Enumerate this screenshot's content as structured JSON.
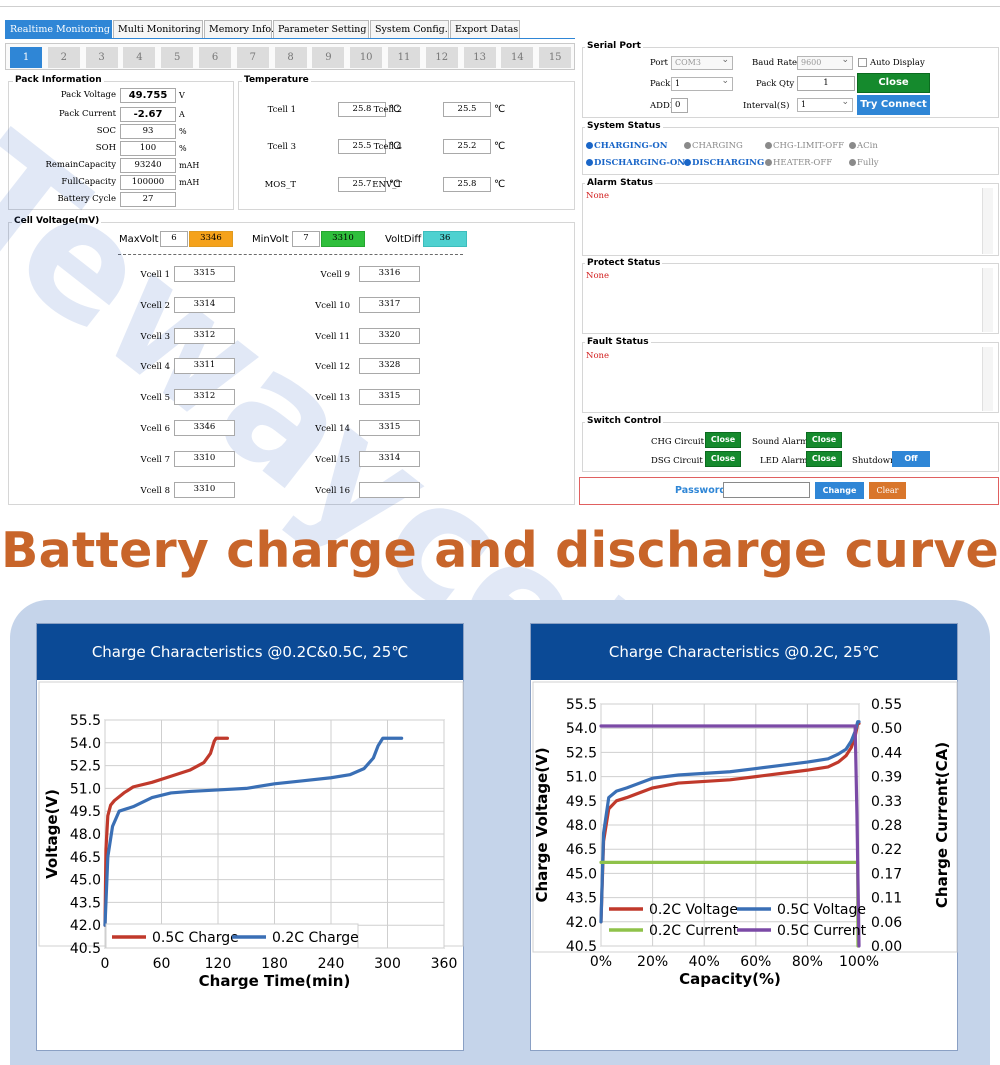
{
  "tabs": [
    "Realtime Monitoring",
    "Multi Monitoring",
    "Memory Info.",
    "Parameter Setting",
    "System Config.",
    "Export Datas"
  ],
  "pack_tabs": [
    "1",
    "2",
    "3",
    "4",
    "5",
    "6",
    "7",
    "8",
    "9",
    "10",
    "11",
    "12",
    "13",
    "14",
    "15"
  ],
  "pack_info": {
    "title": "Pack Information",
    "rows": [
      {
        "label": "Pack Voltage",
        "value": "49.755",
        "unit": "V"
      },
      {
        "label": "Pack Current",
        "value": "-2.67",
        "unit": "A"
      },
      {
        "label": "SOC",
        "value": "93",
        "unit": "%"
      },
      {
        "label": "SOH",
        "value": "100",
        "unit": "%"
      },
      {
        "label": "RemainCapacity",
        "value": "93240",
        "unit": "mAH"
      },
      {
        "label": "FullCapacity",
        "value": "100000",
        "unit": "mAH"
      },
      {
        "label": "Battery Cycle",
        "value": "27",
        "unit": ""
      }
    ]
  },
  "temperature": {
    "title": "Temperature",
    "unit": "℃",
    "items": [
      {
        "label": "Tcell 1",
        "value": "25.8"
      },
      {
        "label": "Tcell 2",
        "value": "25.5"
      },
      {
        "label": "Tcell 3",
        "value": "25.5"
      },
      {
        "label": "Tcell 4",
        "value": "25.2"
      },
      {
        "label": "MOS_T",
        "value": "25.7"
      },
      {
        "label": "ENV_T",
        "value": "25.8"
      }
    ]
  },
  "cell_voltage": {
    "title": "Cell Voltage(mV)",
    "max_label": "MaxVolt",
    "max_cell": "6",
    "max_value": "3346",
    "min_label": "MinVolt",
    "min_cell": "7",
    "min_value": "3310",
    "diff_label": "VoltDiff",
    "diff_value": "36",
    "cells": [
      {
        "label": "Vcell 1",
        "value": "3315"
      },
      {
        "label": "Vcell 2",
        "value": "3314"
      },
      {
        "label": "Vcell 3",
        "value": "3312"
      },
      {
        "label": "Vcell 4",
        "value": "3311"
      },
      {
        "label": "Vcell 5",
        "value": "3312"
      },
      {
        "label": "Vcell 6",
        "value": "3346"
      },
      {
        "label": "Vcell 7",
        "value": "3310"
      },
      {
        "label": "Vcell 8",
        "value": "3310"
      },
      {
        "label": "Vcell 9",
        "value": "3316"
      },
      {
        "label": "Vcell 10",
        "value": "3317"
      },
      {
        "label": "Vcell 11",
        "value": "3320"
      },
      {
        "label": "Vcell 12",
        "value": "3328"
      },
      {
        "label": "Vcell 13",
        "value": "3315"
      },
      {
        "label": "Vcell 14",
        "value": "3315"
      },
      {
        "label": "Vcell 15",
        "value": "3314"
      },
      {
        "label": "Vcell 16",
        "value": ""
      }
    ],
    "colors": {
      "max": "#f5a21b",
      "min": "#2fbf3c",
      "diff": "#4fd1d0"
    }
  },
  "serial_port": {
    "title": "Serial Port",
    "port_label": "Port",
    "port_value": "COM3",
    "baud_label": "Baud Rate",
    "baud_value": "9600",
    "auto_display_label": "Auto Display",
    "pack_label": "Pack",
    "pack_value": "1",
    "pack_qty_label": "Pack Qty",
    "pack_qty_value": "1",
    "close_label": "Close",
    "addr_label": "ADDR",
    "addr_value": "0",
    "interval_label": "Interval(S)",
    "interval_value": "1",
    "try_connect_label": "Try Connect"
  },
  "system_status": {
    "title": "System Status",
    "items": [
      {
        "label": "CHARGING-ON",
        "on": true
      },
      {
        "label": "CHARGING",
        "on": false
      },
      {
        "label": "CHG-LIMIT-OFF",
        "on": false
      },
      {
        "label": "ACin",
        "on": false
      },
      {
        "label": "DISCHARGING-ON",
        "on": true
      },
      {
        "label": "DISCHARGING",
        "on": true
      },
      {
        "label": "HEATER-OFF",
        "on": false
      },
      {
        "label": "Fully",
        "on": false
      }
    ]
  },
  "alarm_status": {
    "title": "Alarm Status",
    "value": "None"
  },
  "protect_status": {
    "title": "Protect Status",
    "value": "None"
  },
  "fault_status": {
    "title": "Fault Status",
    "value": "None"
  },
  "switch_control": {
    "title": "Switch Control",
    "chg_label": "CHG Circuit",
    "chg_btn": "Close",
    "sound_label": "Sound Alarm",
    "sound_btn": "Close",
    "dsg_label": "DSG Circuit",
    "dsg_btn": "Close",
    "led_label": "LED Alarm",
    "led_btn": "Close",
    "shutdown_label": "Shutdown",
    "shutdown_btn": "Off"
  },
  "password": {
    "label": "Password",
    "change_label": "Change",
    "clear_label": "Clear"
  },
  "heading": "Battery charge and discharge curve",
  "watermark": "Tewaycell",
  "chart_data": [
    {
      "type": "line",
      "title": "Charge Characteristics @0.2C&0.5C, 25℃",
      "xlabel": "Charge Time(min)",
      "ylabel": "Voltage(V)",
      "xlim": [
        0,
        360
      ],
      "ylim": [
        40.5,
        55.5
      ],
      "xticks": [
        "0",
        "60",
        "120",
        "180",
        "240",
        "300",
        "360"
      ],
      "yticks": [
        "40.5",
        "42.0",
        "43.5",
        "45.0",
        "46.5",
        "48.0",
        "49.5",
        "51.0",
        "52.5",
        "54.0",
        "55.5"
      ],
      "legend_position": "bottom-left",
      "grid": true,
      "series": [
        {
          "name": "0.5C Charge",
          "color": "#c0392b",
          "x": [
            0,
            1,
            3,
            6,
            10,
            20,
            30,
            50,
            70,
            90,
            105,
            112,
            116,
            118,
            120,
            130
          ],
          "y": [
            42.0,
            47.0,
            49.2,
            49.9,
            50.2,
            50.7,
            51.1,
            51.4,
            51.8,
            52.2,
            52.7,
            53.3,
            54.1,
            54.3,
            54.3,
            54.3
          ]
        },
        {
          "name": "0.2C Charge",
          "color": "#3a6fb5",
          "x": [
            0,
            3,
            8,
            15,
            30,
            50,
            70,
            90,
            120,
            150,
            180,
            210,
            240,
            260,
            275,
            285,
            290,
            295,
            300,
            315
          ],
          "y": [
            42.0,
            46.5,
            48.5,
            49.5,
            49.8,
            50.4,
            50.7,
            50.8,
            50.9,
            51.0,
            51.3,
            51.5,
            51.7,
            51.9,
            52.3,
            53.0,
            53.8,
            54.3,
            54.3,
            54.3
          ]
        }
      ]
    },
    {
      "type": "line",
      "title": "Charge Characteristics @0.2C, 25℃",
      "xlabel": "Capacity(%)",
      "ylabel": "Charge Voltage(V)",
      "y2label": "Charge Current(CA)",
      "xlim": [
        0,
        100
      ],
      "ylim": [
        40.5,
        55.5
      ],
      "y2lim": [
        0.0,
        0.55
      ],
      "xticks": [
        "0%",
        "20%",
        "40%",
        "60%",
        "80%",
        "100%"
      ],
      "yticks": [
        "40.5",
        "42.0",
        "43.5",
        "45.0",
        "46.5",
        "48.0",
        "49.5",
        "51.0",
        "52.5",
        "54.0",
        "55.5"
      ],
      "y2ticks": [
        "0.00",
        "0.06",
        "0.11",
        "0.17",
        "0.22",
        "0.28",
        "0.33",
        "0.39",
        "0.44",
        "0.50",
        "0.55"
      ],
      "legend_position": "bottom",
      "grid": true,
      "series": [
        {
          "name": "0.2C Voltage",
          "color": "#c0392b",
          "axis": "y",
          "x": [
            0,
            1,
            3,
            6,
            10,
            20,
            30,
            40,
            50,
            60,
            70,
            80,
            88,
            92,
            95,
            97,
            98.5,
            99.5,
            100
          ],
          "y": [
            42.0,
            47.0,
            49.0,
            49.5,
            49.7,
            50.3,
            50.6,
            50.7,
            50.8,
            51.0,
            51.2,
            51.4,
            51.6,
            51.9,
            52.3,
            52.8,
            53.5,
            54.3,
            54.3
          ]
        },
        {
          "name": "0.5C Voltage",
          "color": "#3a6fb5",
          "axis": "y",
          "x": [
            0,
            1,
            3,
            6,
            10,
            20,
            30,
            40,
            50,
            60,
            70,
            80,
            88,
            92,
            95,
            97,
            98.5,
            99.5,
            100
          ],
          "y": [
            42.0,
            47.5,
            49.7,
            50.1,
            50.3,
            50.9,
            51.1,
            51.2,
            51.3,
            51.5,
            51.7,
            51.9,
            52.1,
            52.4,
            52.7,
            53.2,
            53.8,
            54.4,
            54.4
          ]
        },
        {
          "name": "0.2C Current",
          "color": "#8fc24a",
          "axis": "y2",
          "x": [
            0,
            99.5,
            99.6
          ],
          "y": [
            0.19,
            0.19,
            0.0
          ]
        },
        {
          "name": "0.5C Current",
          "color": "#7b4aa6",
          "axis": "y2",
          "x": [
            0,
            98.5,
            99.2,
            100
          ],
          "y": [
            0.5,
            0.5,
            0.3,
            0.0
          ]
        }
      ]
    }
  ]
}
